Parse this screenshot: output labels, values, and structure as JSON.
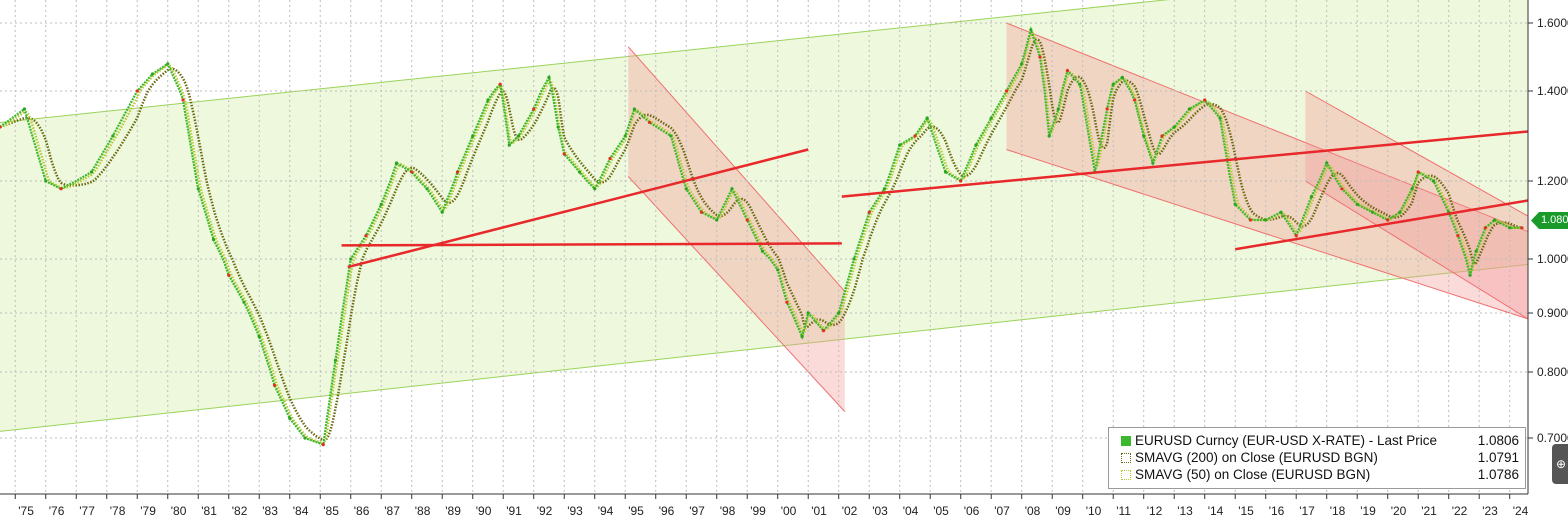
{
  "chart_data": {
    "type": "line",
    "title": "",
    "xlabel": "",
    "ylabel": "",
    "x_ticks": [
      "'75",
      "'76",
      "'77",
      "'78",
      "'79",
      "'80",
      "'81",
      "'82",
      "'83",
      "'84",
      "'85",
      "'86",
      "'87",
      "'88",
      "'89",
      "'90",
      "'91",
      "'92",
      "'93",
      "'94",
      "'95",
      "'96",
      "'97",
      "'98",
      "'99",
      "'00",
      "'01",
      "'02",
      "'03",
      "'04",
      "'05",
      "'06",
      "'07",
      "'08",
      "'09",
      "'10",
      "'11",
      "'12",
      "'13",
      "'14",
      "'15",
      "'16",
      "'17",
      "'18",
      "'19",
      "'20",
      "'21",
      "'22",
      "'23",
      "'24"
    ],
    "y_ticks": [
      "0.7000",
      "0.8000",
      "0.9000",
      "1.0000",
      "1.2000",
      "1.4000",
      "1.6000"
    ],
    "xlim": [
      1974.5,
      2024.6
    ],
    "ylim": [
      0.62,
      1.64
    ],
    "series": [
      {
        "name": "EURUSD Curncy (EUR-USD X-RATE) - Last Price",
        "value_label": "1.0806",
        "color": "#3cb82e",
        "x": [
          1974.5,
          1975.3,
          1976.0,
          1976.5,
          1977.5,
          1978.2,
          1979.0,
          1979.5,
          1980.0,
          1980.5,
          1981.0,
          1981.5,
          1982.0,
          1982.5,
          1983.0,
          1983.5,
          1984.0,
          1984.5,
          1985.1,
          1985.5,
          1986.0,
          1986.5,
          1987.0,
          1987.5,
          1988.0,
          1988.5,
          1989.0,
          1989.5,
          1990.0,
          1990.5,
          1990.9,
          1991.2,
          1991.5,
          1992.0,
          1992.5,
          1992.8,
          1993.0,
          1993.5,
          1994.0,
          1994.5,
          1995.0,
          1995.3,
          1995.8,
          1996.5,
          1997.0,
          1997.5,
          1998.0,
          1998.5,
          1999.0,
          1999.5,
          2000.0,
          2000.3,
          2000.8,
          2001.0,
          2001.5,
          2002.0,
          2002.5,
          2003.0,
          2003.5,
          2004.0,
          2004.5,
          2004.9,
          2005.5,
          2006.0,
          2006.5,
          2007.0,
          2007.5,
          2008.0,
          2008.3,
          2008.6,
          2008.9,
          2009.2,
          2009.5,
          2009.9,
          2010.4,
          2010.8,
          2011.0,
          2011.3,
          2011.7,
          2012.0,
          2012.3,
          2012.6,
          2013.0,
          2013.5,
          2014.0,
          2014.5,
          2015.0,
          2015.5,
          2016.0,
          2016.5,
          2017.0,
          2017.5,
          2018.0,
          2018.5,
          2019.0,
          2019.5,
          2020.0,
          2020.4,
          2020.8,
          2021.0,
          2021.5,
          2022.0,
          2022.3,
          2022.7,
          2022.9,
          2023.2,
          2023.5,
          2024.0,
          2024.4
        ],
        "values": [
          1.32,
          1.36,
          1.2,
          1.18,
          1.22,
          1.3,
          1.4,
          1.45,
          1.48,
          1.38,
          1.18,
          1.05,
          0.97,
          0.92,
          0.86,
          0.78,
          0.73,
          0.7,
          0.69,
          0.82,
          1.0,
          1.06,
          1.14,
          1.24,
          1.22,
          1.18,
          1.12,
          1.22,
          1.3,
          1.38,
          1.42,
          1.28,
          1.3,
          1.36,
          1.44,
          1.32,
          1.26,
          1.22,
          1.18,
          1.25,
          1.3,
          1.36,
          1.33,
          1.3,
          1.18,
          1.12,
          1.1,
          1.18,
          1.1,
          1.02,
          0.98,
          0.92,
          0.86,
          0.9,
          0.87,
          0.9,
          1.0,
          1.12,
          1.18,
          1.28,
          1.3,
          1.34,
          1.22,
          1.2,
          1.28,
          1.34,
          1.4,
          1.48,
          1.58,
          1.5,
          1.3,
          1.36,
          1.46,
          1.42,
          1.22,
          1.36,
          1.42,
          1.44,
          1.38,
          1.3,
          1.24,
          1.3,
          1.32,
          1.36,
          1.38,
          1.34,
          1.14,
          1.1,
          1.1,
          1.12,
          1.06,
          1.16,
          1.24,
          1.18,
          1.14,
          1.12,
          1.1,
          1.12,
          1.18,
          1.22,
          1.2,
          1.12,
          1.06,
          0.97,
          1.02,
          1.08,
          1.1,
          1.08,
          1.08
        ]
      },
      {
        "name": "SMAVG (200)  on Close (EURUSD BGN)",
        "value_label": "1.0791",
        "color": "#6a6a12"
      },
      {
        "name": "SMAVG (50)  on Close (EURUSD BGN)",
        "value_label": "1.0786",
        "color": "#b8c830"
      }
    ],
    "support_resistance_lines": [
      {
        "x": [
          1985.7,
          2002.1
        ],
        "y": [
          1.035,
          1.04
        ]
      },
      {
        "x": [
          1985.9,
          2001.0
        ],
        "y": [
          0.985,
          1.27
        ]
      },
      {
        "x": [
          2002.1,
          2024.6
        ],
        "y": [
          1.16,
          1.31
        ]
      },
      {
        "x": [
          2015.0,
          2024.6
        ],
        "y": [
          1.025,
          1.15
        ]
      }
    ],
    "channels": [
      {
        "type": "green-uptrend",
        "upper": {
          "x": [
            1974.5,
            2024.6
          ],
          "y": [
            1.33,
            1.78
          ]
        },
        "lower": {
          "x": [
            1974.5,
            2024.6
          ],
          "y": [
            0.71,
            0.99
          ]
        }
      },
      {
        "type": "red-downtrend",
        "x": [
          1995.1,
          2002.2
        ],
        "upper": [
          1.53,
          0.94
        ],
        "lower": [
          1.21,
          0.74
        ]
      },
      {
        "type": "red-downtrend",
        "x": [
          2007.5,
          2024.6
        ],
        "upper": [
          1.6,
          1.07
        ],
        "lower": [
          1.27,
          0.89
        ]
      },
      {
        "type": "red-downtrend",
        "x": [
          2017.3,
          2024.6
        ],
        "upper": [
          1.4,
          1.11
        ],
        "lower": [
          1.2,
          0.89
        ]
      }
    ],
    "grid": true,
    "legend_position": "bottom-right",
    "y_axis_position": "right",
    "last_price_badge": "1.0806"
  }
}
